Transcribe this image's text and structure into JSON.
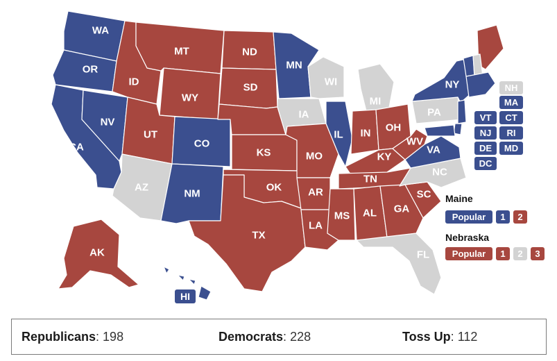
{
  "colors": {
    "republican": "#a7473f",
    "democrat": "#3b4f8f",
    "tossup": "#d3d3d3"
  },
  "states": {
    "WA": {
      "label": "WA",
      "party": "democrat"
    },
    "OR": {
      "label": "OR",
      "party": "democrat"
    },
    "CA": {
      "label": "CA",
      "party": "democrat"
    },
    "NV": {
      "label": "NV",
      "party": "democrat"
    },
    "ID": {
      "label": "ID",
      "party": "republican"
    },
    "MT": {
      "label": "MT",
      "party": "republican"
    },
    "WY": {
      "label": "WY",
      "party": "republican"
    },
    "UT": {
      "label": "UT",
      "party": "republican"
    },
    "CO": {
      "label": "CO",
      "party": "democrat"
    },
    "AZ": {
      "label": "AZ",
      "party": "tossup"
    },
    "NM": {
      "label": "NM",
      "party": "democrat"
    },
    "ND": {
      "label": "ND",
      "party": "republican"
    },
    "SD": {
      "label": "SD",
      "party": "republican"
    },
    "NE": {
      "label": "",
      "party": "republican"
    },
    "KS": {
      "label": "KS",
      "party": "republican"
    },
    "OK": {
      "label": "OK",
      "party": "republican"
    },
    "TX": {
      "label": "TX",
      "party": "republican"
    },
    "MN": {
      "label": "MN",
      "party": "democrat"
    },
    "IA": {
      "label": "IA",
      "party": "tossup"
    },
    "MO": {
      "label": "MO",
      "party": "republican"
    },
    "AR": {
      "label": "AR",
      "party": "republican"
    },
    "LA": {
      "label": "LA",
      "party": "republican"
    },
    "WI": {
      "label": "WI",
      "party": "tossup"
    },
    "IL": {
      "label": "IL",
      "party": "democrat"
    },
    "MI": {
      "label": "MI",
      "party": "tossup"
    },
    "IN": {
      "label": "IN",
      "party": "republican"
    },
    "OH": {
      "label": "OH",
      "party": "republican"
    },
    "KY": {
      "label": "KY",
      "party": "republican"
    },
    "TN": {
      "label": "TN",
      "party": "republican"
    },
    "MS": {
      "label": "MS",
      "party": "republican"
    },
    "AL": {
      "label": "AL",
      "party": "republican"
    },
    "GA": {
      "label": "GA",
      "party": "republican"
    },
    "FL": {
      "label": "FL",
      "party": "tossup"
    },
    "SC": {
      "label": "SC",
      "party": "republican"
    },
    "NC": {
      "label": "NC",
      "party": "tossup"
    },
    "VA": {
      "label": "VA",
      "party": "democrat"
    },
    "WV": {
      "label": "WV",
      "party": "republican"
    },
    "PA": {
      "label": "PA",
      "party": "tossup"
    },
    "NY": {
      "label": "NY",
      "party": "democrat"
    },
    "ME": {
      "label": "",
      "party": "republican"
    },
    "VT_map": {
      "label": "",
      "party": "democrat"
    },
    "NH_map": {
      "label": "",
      "party": "tossup"
    },
    "NE_states": {
      "label": "",
      "party": "democrat"
    },
    "NJ_map": {
      "label": "",
      "party": "democrat"
    },
    "DE_map": {
      "label": "",
      "party": "democrat"
    },
    "MD_map": {
      "label": "",
      "party": "democrat"
    },
    "AK": {
      "label": "AK",
      "party": "republican"
    },
    "HI": {
      "label": "",
      "party": "democrat"
    }
  },
  "hi_label": "HI",
  "small_states": [
    {
      "code": "NH",
      "label": "NH",
      "party": "tossup"
    },
    {
      "code": "MA",
      "label": "MA",
      "party": "democrat"
    },
    {
      "code": "VT",
      "label": "VT",
      "party": "democrat"
    },
    {
      "code": "CT",
      "label": "CT",
      "party": "democrat"
    },
    {
      "code": "NJ",
      "label": "NJ",
      "party": "democrat"
    },
    {
      "code": "RI",
      "label": "RI",
      "party": "democrat"
    },
    {
      "code": "DE",
      "label": "DE",
      "party": "democrat"
    },
    {
      "code": "MD",
      "label": "MD",
      "party": "democrat"
    },
    {
      "code": "DC",
      "label": "DC",
      "party": "democrat"
    }
  ],
  "maine": {
    "title": "Maine",
    "items": [
      {
        "label": "Popular",
        "party": "democrat"
      },
      {
        "label": "1",
        "party": "democrat"
      },
      {
        "label": "2",
        "party": "republican"
      }
    ]
  },
  "nebraska": {
    "title": "Nebraska",
    "items": [
      {
        "label": "Popular",
        "party": "republican"
      },
      {
        "label": "1",
        "party": "republican"
      },
      {
        "label": "2",
        "party": "tossup"
      },
      {
        "label": "3",
        "party": "republican"
      }
    ]
  },
  "totals": {
    "republicans": {
      "label": "Republicans",
      "value": "198"
    },
    "democrats": {
      "label": "Democrats",
      "value": "228"
    },
    "tossup": {
      "label": "Toss Up",
      "value": "112"
    }
  }
}
